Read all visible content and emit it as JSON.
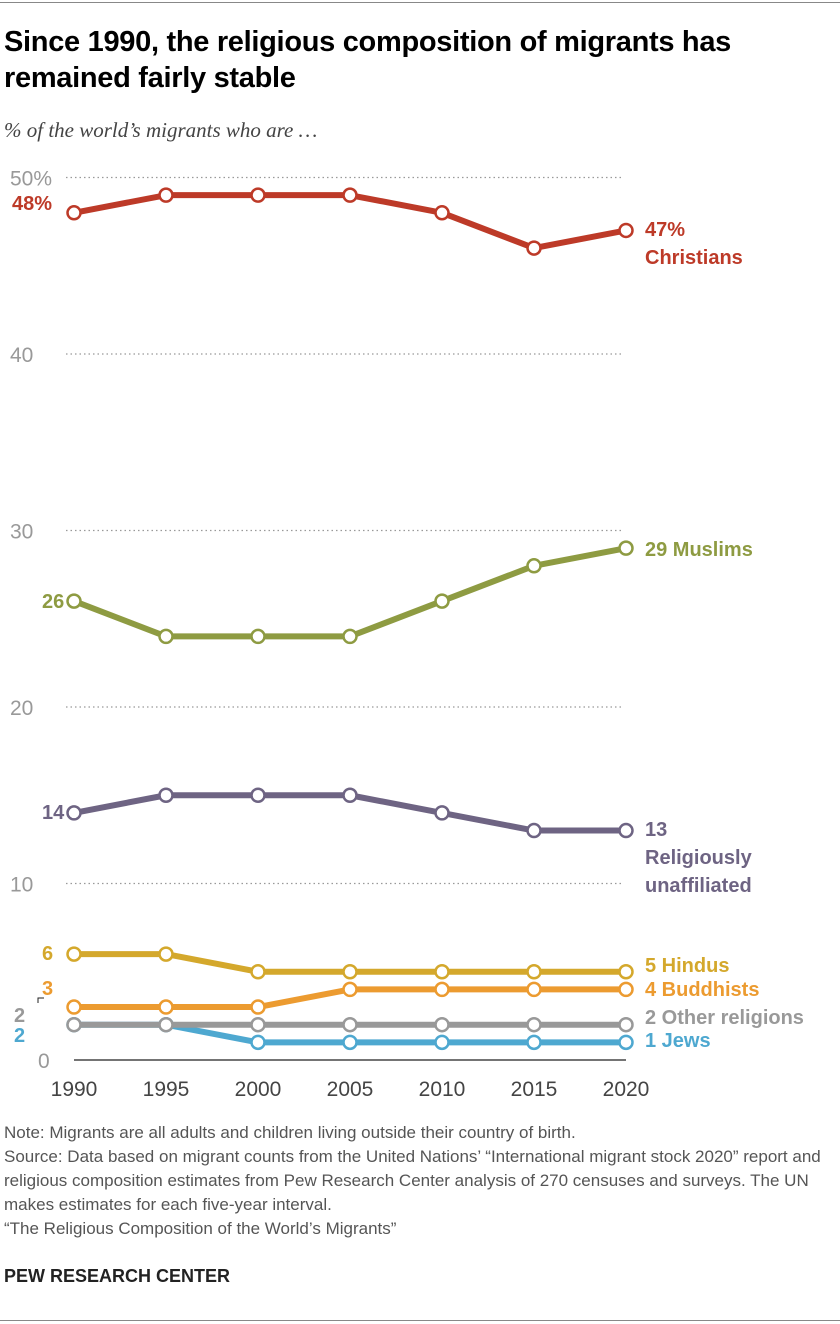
{
  "title": "Since 1990, the religious composition of migrants has remained fairly stable",
  "subtitle": "% of the world’s migrants who are …",
  "notes": [
    "Note: Migrants are all adults and children living outside their country of birth.",
    "Source: Data based on migrant counts from the United Nations’ “International migrant stock 2020” report and religious composition estimates from Pew Research Center analysis of 270 censuses and surveys. The UN makes estimates for each five-year interval.",
    "“The Religious Composition of the World’s Migrants”"
  ],
  "brand": "PEW RESEARCH CENTER",
  "chart_data": {
    "type": "line",
    "x": [
      1990,
      1995,
      2000,
      2005,
      2010,
      2015,
      2020
    ],
    "ylim": [
      0,
      50
    ],
    "yticks": [
      {
        "v": 50,
        "label": "50%"
      },
      {
        "v": 40,
        "label": "40"
      },
      {
        "v": 30,
        "label": "30"
      },
      {
        "v": 20,
        "label": "20"
      },
      {
        "v": 10,
        "label": "10"
      },
      {
        "v": 0,
        "label": "0"
      }
    ],
    "grid": true,
    "series": [
      {
        "name": "Christians",
        "color": "#bd3a28",
        "values": [
          48,
          49,
          49,
          49,
          48,
          46,
          47
        ],
        "start_label": "48%",
        "end_label": [
          "47%",
          "Christians"
        ]
      },
      {
        "name": "Muslims",
        "color": "#8e9b42",
        "values": [
          26,
          24,
          24,
          24,
          26,
          28,
          29
        ],
        "start_label": "26",
        "end_label": [
          "29 Muslims"
        ]
      },
      {
        "name": "Religiously unaffiliated",
        "color": "#6e6483",
        "values": [
          14,
          15,
          15,
          15,
          14,
          13,
          13
        ],
        "start_label": "14",
        "end_label": [
          "13",
          "Religiously",
          "unaffiliated"
        ]
      },
      {
        "name": "Hindus",
        "color": "#d4a82c",
        "values": [
          6,
          6,
          5,
          5,
          5,
          5,
          5
        ],
        "start_label": "6",
        "end_label": [
          "5 Hindus"
        ]
      },
      {
        "name": "Buddhists",
        "color": "#ec9b30",
        "values": [
          3,
          3,
          3,
          4,
          4,
          4,
          4
        ],
        "start_label": "3",
        "end_label": [
          "4 Buddhists"
        ]
      },
      {
        "name": "Other religions",
        "color": "#999999",
        "values": [
          2,
          2,
          2,
          2,
          2,
          2,
          2
        ],
        "start_label": "2",
        "end_label": [
          "2 Other religions"
        ]
      },
      {
        "name": "Jews",
        "color": "#4ea8d0",
        "values": [
          2,
          2,
          1,
          1,
          1,
          1,
          1
        ],
        "start_label": "2",
        "end_label": [
          "1 Jews"
        ]
      }
    ]
  }
}
